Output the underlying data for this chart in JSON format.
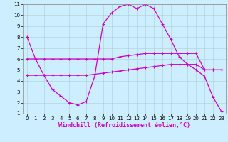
{
  "background_color": "#cceeff",
  "line_color": "#cc00cc",
  "grid_color": "#aacccc",
  "xlabel": "Windchill (Refroidissement éolien,°C)",
  "xlim": [
    -0.5,
    23.5
  ],
  "ylim": [
    1,
    11
  ],
  "xticks": [
    0,
    1,
    2,
    3,
    4,
    5,
    6,
    7,
    8,
    9,
    10,
    11,
    12,
    13,
    14,
    15,
    16,
    17,
    18,
    19,
    20,
    21,
    22,
    23
  ],
  "yticks": [
    1,
    2,
    3,
    4,
    5,
    6,
    7,
    8,
    9,
    10,
    11
  ],
  "line1_x": [
    0,
    1,
    2,
    3,
    4,
    5,
    6,
    7,
    8,
    9,
    10,
    11,
    12,
    13,
    14,
    15,
    16,
    17,
    18,
    19,
    20,
    21,
    22,
    23
  ],
  "line1_y": [
    8.0,
    6.0,
    4.5,
    3.2,
    2.6,
    2.0,
    1.8,
    2.1,
    4.4,
    9.2,
    10.2,
    10.8,
    11.0,
    10.6,
    11.0,
    10.6,
    9.2,
    7.8,
    6.2,
    5.5,
    5.0,
    4.4,
    2.5,
    1.2
  ],
  "line2_x": [
    0,
    1,
    2,
    3,
    4,
    5,
    6,
    7,
    8,
    9,
    10,
    11,
    12,
    13,
    14,
    15,
    16,
    17,
    18,
    19,
    20,
    21,
    22,
    23
  ],
  "line2_y": [
    6.0,
    6.0,
    6.0,
    6.0,
    6.0,
    6.0,
    6.0,
    6.0,
    6.0,
    6.0,
    6.0,
    6.2,
    6.3,
    6.4,
    6.5,
    6.5,
    6.5,
    6.5,
    6.5,
    6.5,
    6.5,
    5.0,
    5.0,
    5.0
  ],
  "line3_x": [
    0,
    1,
    2,
    3,
    4,
    5,
    6,
    7,
    8,
    9,
    10,
    11,
    12,
    13,
    14,
    15,
    16,
    17,
    18,
    19,
    20,
    21,
    22,
    23
  ],
  "line3_y": [
    4.5,
    4.5,
    4.5,
    4.5,
    4.5,
    4.5,
    4.5,
    4.5,
    4.6,
    4.7,
    4.8,
    4.9,
    5.0,
    5.1,
    5.2,
    5.3,
    5.4,
    5.5,
    5.5,
    5.5,
    5.5,
    5.0,
    5.0,
    5.0
  ],
  "xlabel_color": "#cc00cc",
  "xlabel_fontsize": 6,
  "tick_fontsize": 5
}
